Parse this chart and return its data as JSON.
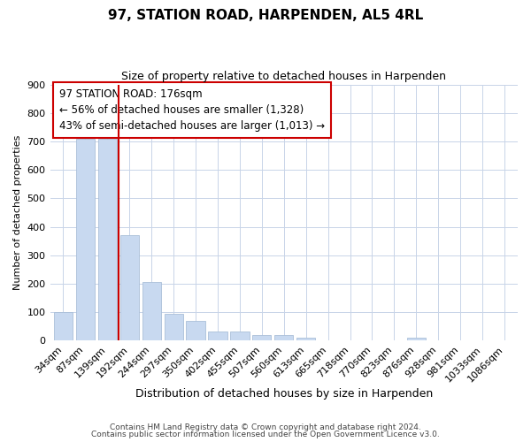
{
  "title": "97, STATION ROAD, HARPENDEN, AL5 4RL",
  "subtitle": "Size of property relative to detached houses in Harpenden",
  "xlabel": "Distribution of detached houses by size in Harpenden",
  "ylabel": "Number of detached properties",
  "bar_labels": [
    "34sqm",
    "87sqm",
    "139sqm",
    "192sqm",
    "244sqm",
    "297sqm",
    "350sqm",
    "402sqm",
    "455sqm",
    "507sqm",
    "560sqm",
    "613sqm",
    "665sqm",
    "718sqm",
    "770sqm",
    "823sqm",
    "876sqm",
    "928sqm",
    "981sqm",
    "1033sqm",
    "1086sqm"
  ],
  "bar_values": [
    100,
    710,
    710,
    370,
    207,
    93,
    70,
    33,
    33,
    20,
    20,
    10,
    0,
    0,
    0,
    0,
    10,
    0,
    0,
    0,
    0
  ],
  "bar_color": "#c8d9f0",
  "bar_edge_color": "#aabfd8",
  "property_line_x": 2.5,
  "property_line_color": "#cc0000",
  "ylim": [
    0,
    900
  ],
  "yticks": [
    0,
    100,
    200,
    300,
    400,
    500,
    600,
    700,
    800,
    900
  ],
  "annotation_box_text": "97 STATION ROAD: 176sqm\n← 56% of detached houses are smaller (1,328)\n43% of semi-detached houses are larger (1,013) →",
  "footer_line1": "Contains HM Land Registry data © Crown copyright and database right 2024.",
  "footer_line2": "Contains public sector information licensed under the Open Government Licence v3.0.",
  "background_color": "#ffffff",
  "grid_color": "#c8d4e8"
}
